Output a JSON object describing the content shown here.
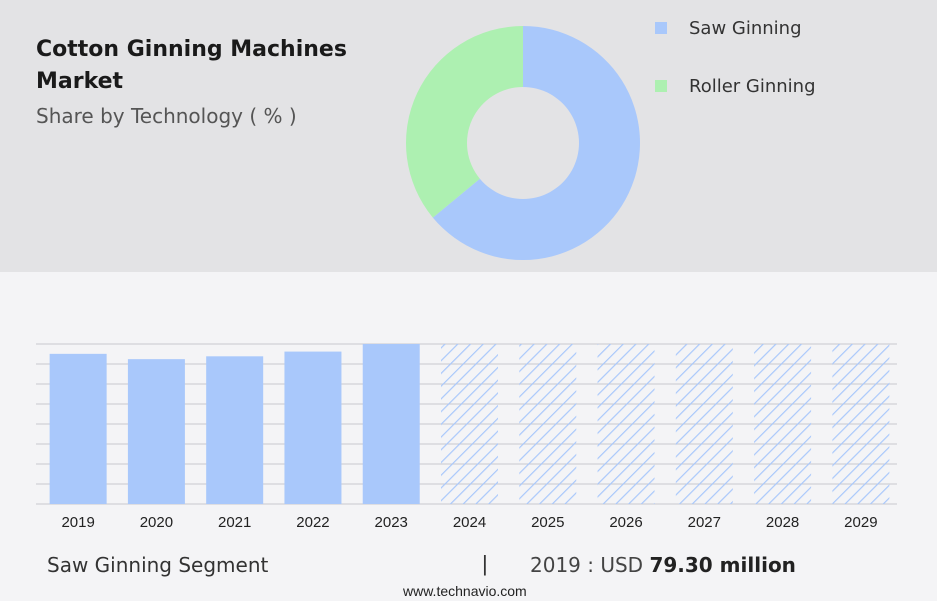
{
  "header": {
    "title": "Cotton Ginning Machines Market",
    "subtitle": "Share by Technology ( % )"
  },
  "legend": [
    {
      "label": "Saw Ginning",
      "color": "#a9c8fb"
    },
    {
      "label": "Roller Ginning",
      "color": "#adf0b1"
    }
  ],
  "chart_data": [
    {
      "type": "pie",
      "categories": [
        "Saw Ginning",
        "Roller Ginning"
      ],
      "values": [
        64,
        36
      ],
      "colors": [
        "#a9c8fb",
        "#adf0b1"
      ],
      "donut": true
    },
    {
      "type": "bar",
      "categories": [
        "2019",
        "2020",
        "2021",
        "2022",
        "2023",
        "2024",
        "2025",
        "2026",
        "2027",
        "2028",
        "2029"
      ],
      "values": [
        79.3,
        76.5,
        78.0,
        80.5,
        84.5,
        null,
        null,
        null,
        null,
        null,
        null
      ],
      "forecast_categories": [
        "2024",
        "2025",
        "2026",
        "2027",
        "2028",
        "2029"
      ],
      "bar_color": "#a9c8fb",
      "grid": true
    }
  ],
  "footer": {
    "segment": "Saw Ginning Segment",
    "separator": "|",
    "value_prefix": "2019 : USD",
    "value": "79.30 million",
    "website": "www.technavio.com"
  }
}
